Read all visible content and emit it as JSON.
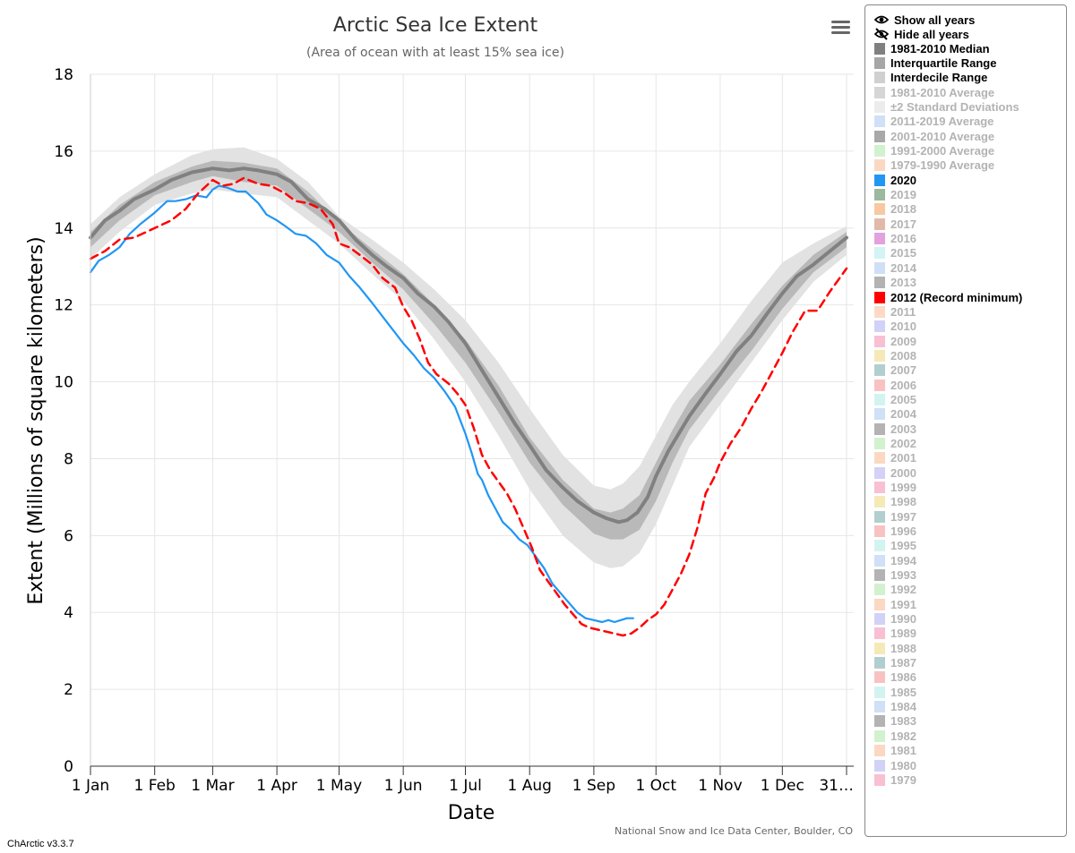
{
  "chart_data": {
    "type": "line",
    "title": "Arctic Sea Ice Extent",
    "subtitle": "(Area of ocean with at least 15% sea ice)",
    "xlabel": "Date",
    "ylabel": "Extent (Millions of square kilometers)",
    "ylim": [
      0,
      18
    ],
    "yticks": [
      0,
      2,
      4,
      6,
      8,
      10,
      12,
      14,
      16,
      18
    ],
    "x_unit": "day of year",
    "xlim": [
      1,
      366
    ],
    "xticks": [
      {
        "day": 1,
        "label": "1 Jan"
      },
      {
        "day": 32,
        "label": "1 Feb"
      },
      {
        "day": 60,
        "label": "1 Mar"
      },
      {
        "day": 91,
        "label": "1 Apr"
      },
      {
        "day": 121,
        "label": "1 May"
      },
      {
        "day": 152,
        "label": "1 Jun"
      },
      {
        "day": 182,
        "label": "1 Jul"
      },
      {
        "day": 213,
        "label": "1 Aug"
      },
      {
        "day": 244,
        "label": "1 Sep"
      },
      {
        "day": 274,
        "label": "1 Oct"
      },
      {
        "day": 305,
        "label": "1 Nov"
      },
      {
        "day": 335,
        "label": "1 Dec"
      },
      {
        "day": 366,
        "label": "31…"
      }
    ],
    "grid": true,
    "legend_position": "right",
    "credit": "National Snow and Ice Data Center, Boulder, CO",
    "bands": [
      {
        "name": "Interdecile Range",
        "color": "#e2e2e2",
        "x": [
          1,
          15,
          32,
          50,
          60,
          75,
          91,
          106,
          121,
          137,
          152,
          167,
          182,
          198,
          213,
          229,
          244,
          252,
          258,
          266,
          274,
          282,
          290,
          305,
          320,
          335,
          350,
          366
        ],
        "low": [
          13.2,
          13.9,
          14.6,
          14.9,
          15.0,
          14.9,
          14.8,
          14.2,
          13.6,
          12.8,
          12.1,
          11.1,
          10.0,
          8.6,
          7.2,
          6.0,
          5.3,
          5.15,
          5.2,
          5.55,
          6.3,
          7.3,
          8.3,
          9.4,
          10.5,
          11.6,
          12.6,
          13.3
        ],
        "high": [
          14.1,
          14.8,
          15.4,
          15.9,
          16.05,
          16.1,
          15.8,
          15.2,
          14.3,
          13.7,
          13.1,
          12.4,
          11.6,
          10.5,
          9.3,
          8.1,
          7.3,
          7.2,
          7.35,
          7.8,
          8.6,
          9.4,
          10.0,
          11.0,
          12.1,
          13.1,
          13.6,
          14.05
        ]
      },
      {
        "name": "Interquartile Range",
        "color": "#b9b9b9",
        "x": [
          1,
          15,
          32,
          50,
          60,
          75,
          91,
          106,
          121,
          137,
          152,
          167,
          182,
          198,
          213,
          229,
          244,
          252,
          258,
          266,
          274,
          282,
          290,
          305,
          320,
          335,
          350,
          366
        ],
        "low": [
          13.5,
          14.2,
          14.85,
          15.2,
          15.35,
          15.2,
          15.1,
          14.5,
          13.9,
          13.1,
          12.4,
          11.5,
          10.5,
          9.2,
          7.9,
          6.8,
          6.05,
          5.9,
          5.9,
          6.15,
          6.9,
          7.9,
          8.75,
          9.8,
          10.8,
          11.9,
          12.85,
          13.5
        ],
        "high": [
          13.9,
          14.6,
          15.2,
          15.6,
          15.75,
          15.7,
          15.55,
          14.95,
          14.15,
          13.45,
          12.8,
          12.0,
          11.1,
          9.9,
          8.55,
          7.45,
          6.7,
          6.6,
          6.7,
          7.05,
          7.9,
          8.75,
          9.5,
          10.45,
          11.5,
          12.5,
          13.3,
          13.9
        ]
      }
    ],
    "series": [
      {
        "name": "1981-2010 Median",
        "color": "#808080",
        "style": "solid",
        "x": [
          1,
          8,
          15,
          22,
          32,
          40,
          50,
          55,
          60,
          68,
          75,
          82,
          91,
          98,
          106,
          114,
          121,
          129,
          137,
          144,
          152,
          159,
          167,
          174,
          182,
          190,
          198,
          206,
          213,
          221,
          229,
          236,
          244,
          250,
          256,
          260,
          265,
          270,
          274,
          280,
          285,
          290,
          298,
          305,
          313,
          320,
          328,
          335,
          342,
          350,
          358,
          366
        ],
        "y": [
          13.75,
          14.2,
          14.45,
          14.75,
          15.0,
          15.25,
          15.45,
          15.5,
          15.55,
          15.5,
          15.55,
          15.5,
          15.4,
          15.2,
          14.75,
          14.5,
          14.2,
          13.7,
          13.3,
          13.0,
          12.7,
          12.3,
          11.95,
          11.55,
          11.0,
          10.3,
          9.6,
          8.9,
          8.35,
          7.7,
          7.25,
          6.9,
          6.6,
          6.45,
          6.35,
          6.4,
          6.6,
          7.0,
          7.55,
          8.2,
          8.65,
          9.1,
          9.7,
          10.2,
          10.8,
          11.2,
          11.8,
          12.3,
          12.75,
          13.05,
          13.4,
          13.75
        ]
      },
      {
        "name": "2020",
        "color": "#2196f3",
        "style": "solid",
        "x": [
          1,
          5,
          10,
          15,
          20,
          25,
          32,
          38,
          42,
          47,
          52,
          57,
          60,
          63,
          67,
          72,
          76,
          82,
          86,
          91,
          95,
          100,
          105,
          110,
          115,
          121,
          126,
          131,
          137,
          142,
          147,
          152,
          157,
          162,
          167,
          172,
          177,
          182,
          185,
          188,
          190,
          193,
          196,
          200,
          204,
          208,
          212,
          216,
          220,
          224,
          228,
          232,
          236,
          240,
          244,
          248,
          251,
          254,
          257,
          260,
          263
        ],
        "y": [
          12.85,
          13.15,
          13.3,
          13.5,
          13.85,
          14.1,
          14.4,
          14.7,
          14.7,
          14.75,
          14.85,
          14.8,
          15.0,
          15.1,
          15.05,
          14.95,
          14.95,
          14.65,
          14.35,
          14.2,
          14.05,
          13.85,
          13.8,
          13.6,
          13.3,
          13.1,
          12.75,
          12.45,
          12.05,
          11.7,
          11.35,
          11.0,
          10.7,
          10.35,
          10.1,
          9.75,
          9.35,
          8.65,
          8.15,
          7.6,
          7.45,
          7.05,
          6.75,
          6.35,
          6.15,
          5.9,
          5.75,
          5.45,
          5.15,
          4.75,
          4.5,
          4.25,
          4.0,
          3.85,
          3.8,
          3.75,
          3.8,
          3.75,
          3.8,
          3.85,
          3.85
        ]
      },
      {
        "name": "2012 (Record minimum)",
        "color": "#ff0000",
        "style": "dashed",
        "x": [
          1,
          8,
          15,
          22,
          32,
          40,
          47,
          53,
          60,
          65,
          70,
          75,
          82,
          88,
          95,
          100,
          106,
          112,
          118,
          121,
          126,
          131,
          137,
          142,
          148,
          152,
          156,
          160,
          164,
          168,
          174,
          178,
          182,
          186,
          190,
          194,
          198,
          202,
          206,
          210,
          214,
          218,
          222,
          226,
          230,
          234,
          238,
          242,
          246,
          250,
          254,
          258,
          262,
          266,
          270,
          274,
          278,
          282,
          286,
          290,
          294,
          298,
          302,
          305,
          310,
          315,
          320,
          325,
          330,
          335,
          340,
          346,
          352,
          358,
          366
        ],
        "y": [
          13.2,
          13.4,
          13.7,
          13.75,
          14.0,
          14.2,
          14.5,
          14.9,
          15.25,
          15.1,
          15.15,
          15.3,
          15.15,
          15.1,
          14.9,
          14.7,
          14.65,
          14.5,
          14.1,
          13.6,
          13.5,
          13.3,
          13.05,
          12.7,
          12.45,
          11.95,
          11.6,
          11.1,
          10.5,
          10.2,
          9.95,
          9.7,
          9.4,
          8.8,
          8.1,
          7.7,
          7.4,
          7.1,
          6.7,
          6.2,
          5.7,
          5.1,
          4.8,
          4.5,
          4.2,
          3.95,
          3.7,
          3.6,
          3.55,
          3.5,
          3.45,
          3.4,
          3.45,
          3.6,
          3.8,
          3.95,
          4.2,
          4.6,
          5.0,
          5.5,
          6.2,
          7.1,
          7.5,
          7.9,
          8.4,
          8.8,
          9.3,
          9.75,
          10.25,
          10.75,
          11.3,
          11.85,
          11.85,
          12.35,
          12.95
        ]
      }
    ]
  },
  "menu": {
    "icon": "hamburger-menu-icon"
  },
  "legend": {
    "show_all": {
      "label": "Show all years",
      "icon": "eye-icon"
    },
    "hide_all": {
      "label": "Hide all years",
      "icon": "eye-slash-icon"
    },
    "items": [
      {
        "label": "1981-2010 Median",
        "color": "#808080",
        "on": true
      },
      {
        "label": "Interquartile Range",
        "color": "#a6a6a6",
        "on": true
      },
      {
        "label": "Interdecile Range",
        "color": "#d0d0d0",
        "on": true
      },
      {
        "label": "1981-2010 Average",
        "color": "#d6d6d6",
        "on": false
      },
      {
        "label": "±2 Standard Deviations",
        "color": "#ececec",
        "on": false
      },
      {
        "label": "2011-2019 Average",
        "color": "#cfe0f7",
        "on": false
      },
      {
        "label": "2001-2010 Average",
        "color": "#a8a8a8",
        "on": false
      },
      {
        "label": "1991-2000 Average",
        "color": "#d2f2cf",
        "on": false
      },
      {
        "label": "1979-1990 Average",
        "color": "#fbd8c2",
        "on": false
      },
      {
        "label": "2020",
        "color": "#2196f3",
        "on": true
      },
      {
        "label": "2019",
        "color": "#9cb89e",
        "on": false
      },
      {
        "label": "2018",
        "color": "#f8c8a0",
        "on": false
      },
      {
        "label": "2017",
        "color": "#e2b9a8",
        "on": false
      },
      {
        "label": "2016",
        "color": "#e2a2dd",
        "on": false
      },
      {
        "label": "2015",
        "color": "#d2f4f6",
        "on": false
      },
      {
        "label": "2014",
        "color": "#cfdff7",
        "on": false
      },
      {
        "label": "2013",
        "color": "#b3b3b3",
        "on": false
      },
      {
        "label": "2012 (Record minimum)",
        "color": "#ff0000",
        "on": true
      },
      {
        "label": "2011",
        "color": "#fdd9c6",
        "on": false
      },
      {
        "label": "2010",
        "color": "#d2d2f7",
        "on": false
      },
      {
        "label": "2009",
        "color": "#f8c0d2",
        "on": false
      },
      {
        "label": "2008",
        "color": "#f5e9b8",
        "on": false
      },
      {
        "label": "2007",
        "color": "#b2cfcf",
        "on": false
      },
      {
        "label": "2006",
        "color": "#f9c2c2",
        "on": false
      },
      {
        "label": "2005",
        "color": "#d2f4f0",
        "on": false
      },
      {
        "label": "2004",
        "color": "#cfe0f7",
        "on": false
      },
      {
        "label": "2003",
        "color": "#b3b3b3",
        "on": false
      },
      {
        "label": "2002",
        "color": "#d2f2cf",
        "on": false
      },
      {
        "label": "2001",
        "color": "#fbd8c2",
        "on": false
      },
      {
        "label": "2000",
        "color": "#d2d2f7",
        "on": false
      },
      {
        "label": "1999",
        "color": "#f8c0d2",
        "on": false
      },
      {
        "label": "1998",
        "color": "#f5e9b8",
        "on": false
      },
      {
        "label": "1997",
        "color": "#b2cfcf",
        "on": false
      },
      {
        "label": "1996",
        "color": "#f9c2c2",
        "on": false
      },
      {
        "label": "1995",
        "color": "#d2f4f0",
        "on": false
      },
      {
        "label": "1994",
        "color": "#cfe0f7",
        "on": false
      },
      {
        "label": "1993",
        "color": "#b3b3b3",
        "on": false
      },
      {
        "label": "1992",
        "color": "#d2f2cf",
        "on": false
      },
      {
        "label": "1991",
        "color": "#fbd8c2",
        "on": false
      },
      {
        "label": "1990",
        "color": "#d2d2f7",
        "on": false
      },
      {
        "label": "1989",
        "color": "#f8c0d2",
        "on": false
      },
      {
        "label": "1988",
        "color": "#f5e9b8",
        "on": false
      },
      {
        "label": "1987",
        "color": "#b2cfcf",
        "on": false
      },
      {
        "label": "1986",
        "color": "#f9c2c2",
        "on": false
      },
      {
        "label": "1985",
        "color": "#d2f4f0",
        "on": false
      },
      {
        "label": "1984",
        "color": "#cfe0f7",
        "on": false
      },
      {
        "label": "1983",
        "color": "#b3b3b3",
        "on": false
      },
      {
        "label": "1982",
        "color": "#d2f2cf",
        "on": false
      },
      {
        "label": "1981",
        "color": "#fbd8c2",
        "on": false
      },
      {
        "label": "1980",
        "color": "#d2d2f7",
        "on": false
      },
      {
        "label": "1979",
        "color": "#f8c0d2",
        "on": false
      }
    ]
  },
  "version": "ChArctic v3.3.7"
}
